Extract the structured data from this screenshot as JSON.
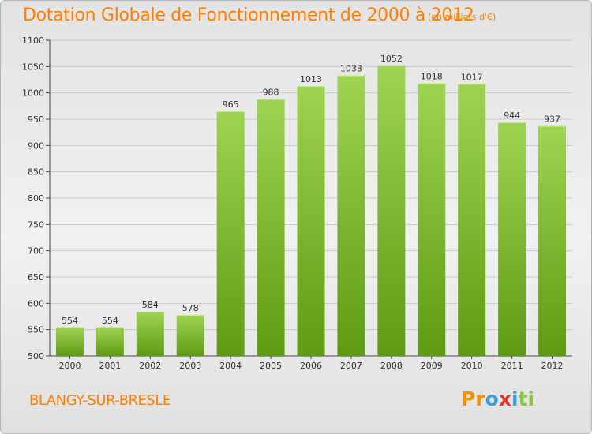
{
  "header": {
    "title": "Dotation Globale de Fonctionnement de 2000 à 2012",
    "subtitle": "(en milliers d'€)"
  },
  "footer": {
    "commune": "BLANGY-SUR-BRESLE",
    "logo_letters": [
      "P",
      "r",
      "o",
      "x",
      "i",
      "t",
      "i"
    ],
    "logo_colors": [
      "#f39200",
      "#f39200",
      "#3aa0d9",
      "#e4322b",
      "#3aa0d9",
      "#8bc53f",
      "#8bc53f"
    ]
  },
  "colors": {
    "title": "#ff7f00",
    "bar_top": "#9fd452",
    "bar_bottom": "#5e9b12"
  },
  "chart_data": {
    "type": "bar",
    "categories": [
      "2000",
      "2001",
      "2002",
      "2003",
      "2004",
      "2005",
      "2006",
      "2007",
      "2008",
      "2009",
      "2010",
      "2011",
      "2012"
    ],
    "values": [
      554,
      554,
      584,
      578,
      965,
      988,
      1013,
      1033,
      1052,
      1018,
      1017,
      944,
      937
    ],
    "title": "Dotation Globale de Fonctionnement de 2000 à 2012",
    "ylim": [
      500,
      1100
    ],
    "yticks": [
      500,
      550,
      600,
      650,
      700,
      750,
      800,
      850,
      900,
      950,
      1000,
      1050,
      1100
    ],
    "grid": true,
    "data_labels": true
  }
}
